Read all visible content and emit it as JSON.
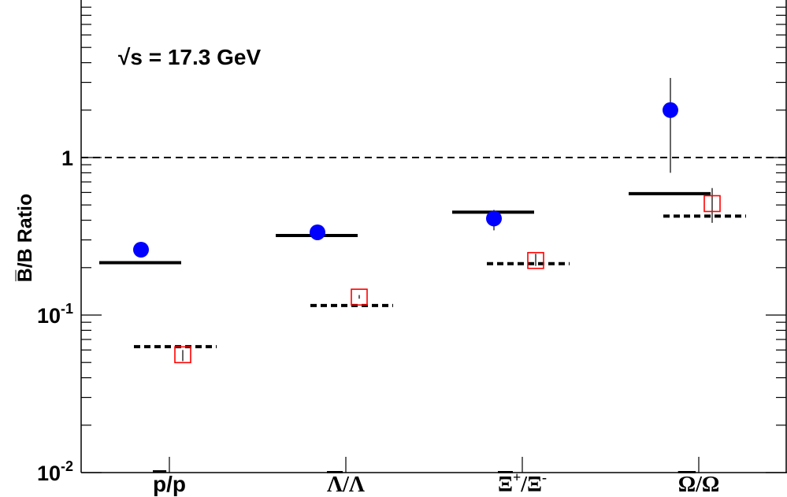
{
  "chart_data": {
    "type": "scatter",
    "ylabel": "B̅/B Ratio",
    "yscale": "log",
    "ylim": [
      0.01,
      10
    ],
    "yticks": [
      {
        "value": 0.01,
        "base": "10",
        "exp": "-2"
      },
      {
        "value": 0.1,
        "base": "10",
        "exp": "-1"
      },
      {
        "value": 1,
        "base": "1",
        "exp": ""
      }
    ],
    "categories": [
      {
        "bar": "p",
        "rest": "/p",
        "sup1": "",
        "sup2": ""
      },
      {
        "bar": "Λ",
        "rest": "/Λ",
        "sup1": "",
        "sup2": ""
      },
      {
        "bar": "Ξ",
        "rest": "/Ξ",
        "sup1": "+",
        "sup2": "-"
      },
      {
        "bar": "Ω",
        "rest": "/Ω",
        "sup1": "",
        "sup2": ""
      }
    ],
    "annotation": {
      "root": "√",
      "rest": "s = 17.3 GeV"
    },
    "reference_line": 1,
    "series": [
      {
        "marker": "filled-circle",
        "color": "#0000ff",
        "values": [
          0.26,
          0.335,
          0.41,
          2.0
        ],
        "err_low": [
          0.25,
          0.32,
          0.345,
          0.8
        ],
        "err_high": [
          0.27,
          0.35,
          0.465,
          3.2
        ]
      },
      {
        "marker": "open-square",
        "color": "#ff0000",
        "values": [
          0.056,
          0.13,
          0.222,
          0.51
        ],
        "err_low": [
          0.051,
          0.127,
          0.205,
          0.385
        ],
        "err_high": [
          0.06,
          0.134,
          0.245,
          0.64
        ]
      },
      {
        "marker": "solid-line",
        "color": "#000000",
        "values": [
          0.215,
          0.32,
          0.45,
          0.59
        ]
      },
      {
        "marker": "dashed-line",
        "color": "#000000",
        "values": [
          0.063,
          0.115,
          0.212,
          0.425
        ]
      }
    ]
  }
}
